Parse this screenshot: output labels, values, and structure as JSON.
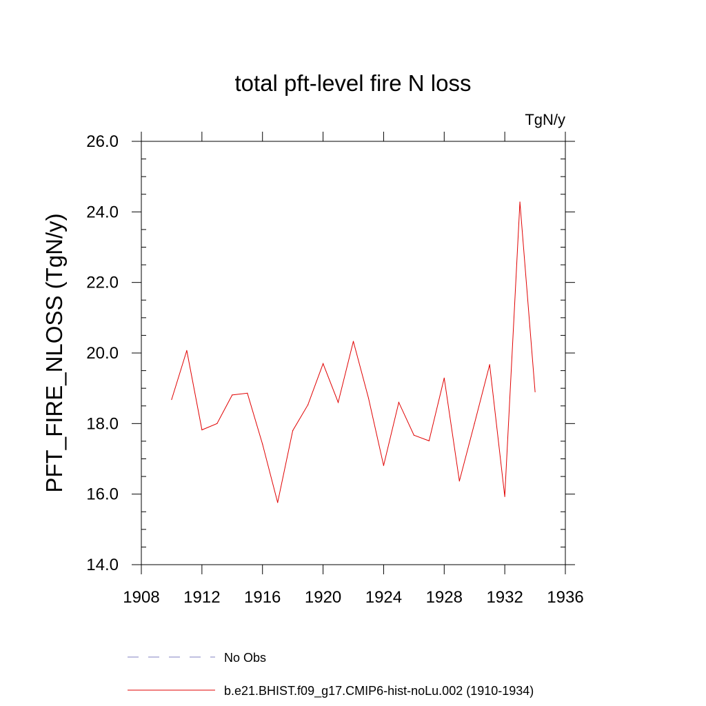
{
  "chart_data": {
    "type": "line",
    "title": "total pft-level fire N loss",
    "units": "TgN/y",
    "ylabel": "PFT_FIRE_NLOSS  (TgN/y)",
    "xlabel": "",
    "xlim": [
      1908,
      1936
    ],
    "ylim": [
      14.0,
      26.0
    ],
    "x_ticks": [
      1908,
      1912,
      1916,
      1920,
      1924,
      1928,
      1932,
      1936
    ],
    "x_tick_labels": [
      "1908",
      "1912",
      "1916",
      "1920",
      "1924",
      "1928",
      "1932",
      "1936"
    ],
    "y_ticks": [
      14,
      16,
      18,
      20,
      22,
      24,
      26
    ],
    "y_tick_labels": [
      "14.0",
      "16.0",
      "18.0",
      "20.0",
      "22.0",
      "24.0",
      "26.0"
    ],
    "grid": false,
    "series": [
      {
        "name": "b.e21.BHIST.f09_g17.CMIP6-hist-noLu.002 (1910-1934)",
        "color": "#e00000",
        "style": "solid",
        "x": [
          1910,
          1911,
          1912,
          1913,
          1914,
          1915,
          1916,
          1917,
          1918,
          1919,
          1920,
          1921,
          1922,
          1923,
          1924,
          1925,
          1926,
          1927,
          1928,
          1929,
          1930,
          1931,
          1932,
          1933,
          1934
        ],
        "y": [
          18.68,
          20.07,
          17.82,
          18.0,
          18.81,
          18.86,
          17.42,
          15.76,
          17.8,
          18.53,
          19.7,
          18.6,
          20.33,
          18.72,
          16.81,
          18.6,
          17.67,
          17.51,
          19.29,
          16.37,
          18.0,
          19.67,
          15.93,
          24.28,
          18.9
        ]
      }
    ],
    "legend": {
      "placement": "bottom",
      "entries": [
        {
          "label": "No Obs",
          "color": "#8080c0",
          "style": "dashed"
        },
        {
          "label": "b.e21.BHIST.f09_g17.CMIP6-hist-noLu.002 (1910-1934)",
          "color": "#e00000",
          "style": "solid"
        }
      ]
    }
  }
}
